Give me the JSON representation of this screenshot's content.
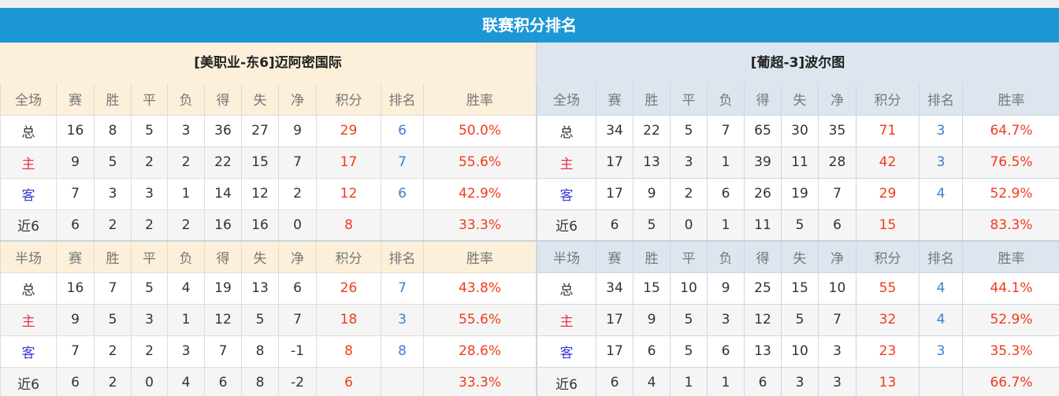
{
  "title": "联赛积分排名",
  "colors": {
    "title_bg": "#1c97d5",
    "points": "#f23b1a",
    "rank": "#3a7fd0"
  },
  "left": {
    "team": "[美职业-东6]迈阿密国际",
    "full": {
      "header": [
        "全场",
        "赛",
        "胜",
        "平",
        "负",
        "得",
        "失",
        "净",
        "积分",
        "排名",
        "胜率"
      ],
      "rows": [
        [
          "总",
          "16",
          "8",
          "5",
          "3",
          "36",
          "27",
          "9",
          "29",
          "6",
          "50.0%"
        ],
        [
          "主",
          "9",
          "5",
          "2",
          "2",
          "22",
          "15",
          "7",
          "17",
          "7",
          "55.6%"
        ],
        [
          "客",
          "7",
          "3",
          "3",
          "1",
          "14",
          "12",
          "2",
          "12",
          "6",
          "42.9%"
        ],
        [
          "近6",
          "6",
          "2",
          "2",
          "2",
          "16",
          "16",
          "0",
          "8",
          "",
          "33.3%"
        ]
      ]
    },
    "half": {
      "header": [
        "半场",
        "赛",
        "胜",
        "平",
        "负",
        "得",
        "失",
        "净",
        "积分",
        "排名",
        "胜率"
      ],
      "rows": [
        [
          "总",
          "16",
          "7",
          "5",
          "4",
          "19",
          "13",
          "6",
          "26",
          "7",
          "43.8%"
        ],
        [
          "主",
          "9",
          "5",
          "3",
          "1",
          "12",
          "5",
          "7",
          "18",
          "3",
          "55.6%"
        ],
        [
          "客",
          "7",
          "2",
          "2",
          "3",
          "7",
          "8",
          "-1",
          "8",
          "8",
          "28.6%"
        ],
        [
          "近6",
          "6",
          "2",
          "0",
          "4",
          "6",
          "8",
          "-2",
          "6",
          "",
          "33.3%"
        ]
      ]
    }
  },
  "right": {
    "team": "[葡超-3]波尔图",
    "full": {
      "header": [
        "全场",
        "赛",
        "胜",
        "平",
        "负",
        "得",
        "失",
        "净",
        "积分",
        "排名",
        "胜率"
      ],
      "rows": [
        [
          "总",
          "34",
          "22",
          "5",
          "7",
          "65",
          "30",
          "35",
          "71",
          "3",
          "64.7%"
        ],
        [
          "主",
          "17",
          "13",
          "3",
          "1",
          "39",
          "11",
          "28",
          "42",
          "3",
          "76.5%"
        ],
        [
          "客",
          "17",
          "9",
          "2",
          "6",
          "26",
          "19",
          "7",
          "29",
          "4",
          "52.9%"
        ],
        [
          "近6",
          "6",
          "5",
          "0",
          "1",
          "11",
          "5",
          "6",
          "15",
          "",
          "83.3%"
        ]
      ]
    },
    "half": {
      "header": [
        "半场",
        "赛",
        "胜",
        "平",
        "负",
        "得",
        "失",
        "净",
        "积分",
        "排名",
        "胜率"
      ],
      "rows": [
        [
          "总",
          "34",
          "15",
          "10",
          "9",
          "25",
          "15",
          "10",
          "55",
          "4",
          "44.1%"
        ],
        [
          "主",
          "17",
          "9",
          "5",
          "3",
          "12",
          "5",
          "7",
          "32",
          "4",
          "52.9%"
        ],
        [
          "客",
          "17",
          "6",
          "5",
          "6",
          "13",
          "10",
          "3",
          "23",
          "3",
          "35.3%"
        ],
        [
          "近6",
          "6",
          "4",
          "1",
          "1",
          "6",
          "3",
          "3",
          "13",
          "",
          "66.7%"
        ]
      ]
    }
  }
}
